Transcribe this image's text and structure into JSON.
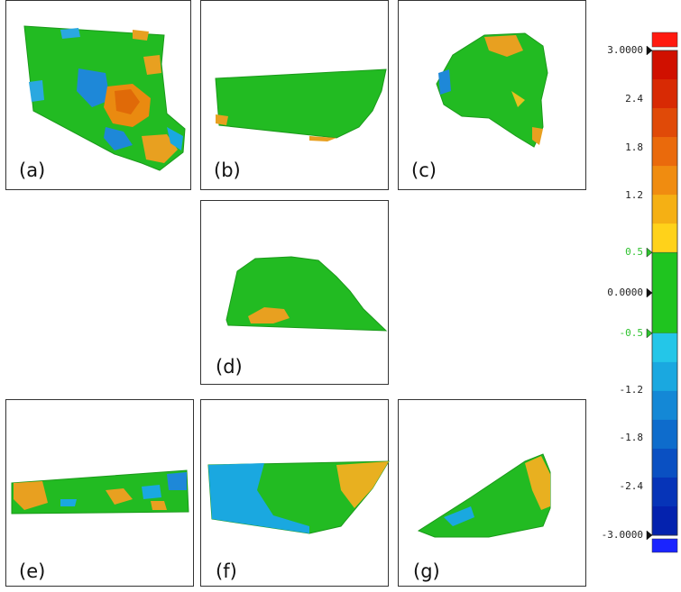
{
  "panels": [
    {
      "id": "a",
      "label": "(a)"
    },
    {
      "id": "b",
      "label": "(b)"
    },
    {
      "id": "c",
      "label": "(c)"
    },
    {
      "id": "d",
      "label": "(d)"
    },
    {
      "id": "e",
      "label": "(e)"
    },
    {
      "id": "f",
      "label": "(f)"
    },
    {
      "id": "g",
      "label": "(g)"
    }
  ],
  "legend": {
    "max": 3.0,
    "min": -3.0,
    "tolerance": 0.5,
    "ticks": [
      "3.0000",
      "2.4",
      "1.8",
      "1.2",
      "0.5",
      "0.0000",
      "-0.5",
      "-1.2",
      "-1.8",
      "-2.4",
      "-3.0000"
    ],
    "tick_values": [
      3.0,
      2.4,
      1.8,
      1.2,
      0.5,
      0.0,
      -0.5,
      -1.2,
      -1.8,
      -2.4,
      -3.0
    ],
    "colors": {
      "over": "#ff1a10",
      "under": "#1a24ff",
      "in_tolerance": "#1fc41f",
      "positive": [
        "#ffd21a",
        "#f5b014",
        "#f08c10",
        "#ea6a0c",
        "#e04a08",
        "#d82a04",
        "#d01000"
      ],
      "negative": [
        "#24c6e8",
        "#1aa8e0",
        "#1488d6",
        "#0e6ccc",
        "#0a50c2",
        "#0634b8",
        "#0422ae"
      ]
    }
  }
}
